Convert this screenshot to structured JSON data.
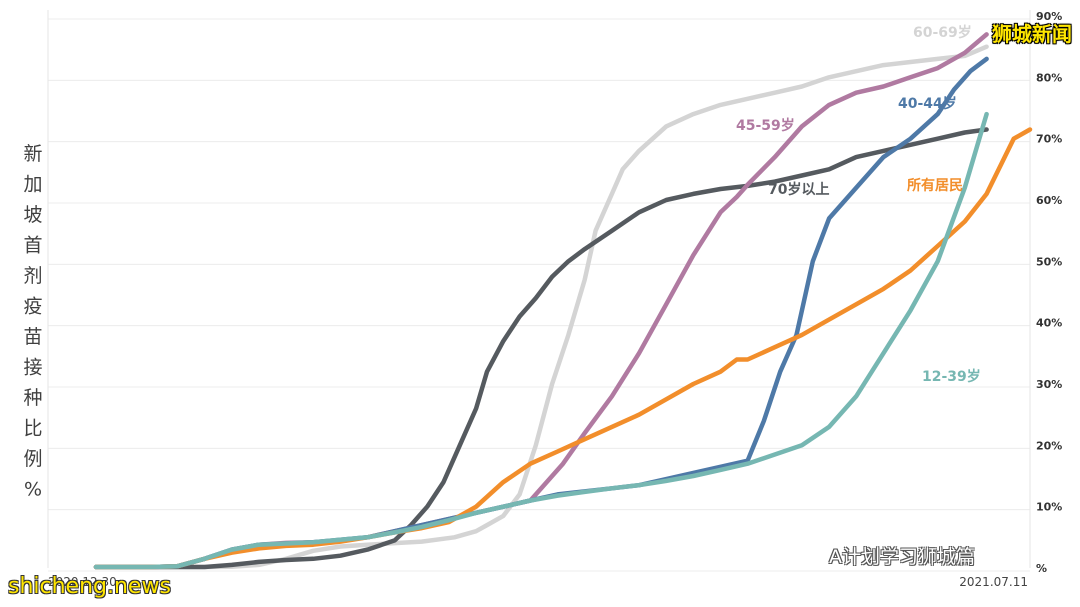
{
  "chart_data": {
    "type": "line",
    "ylabel": "新加坡首剂疫苗接种比例%",
    "ylim": [
      0,
      90
    ],
    "yticks": [
      "%",
      "10%",
      "20%",
      "30%",
      "40%",
      "50%",
      "60%",
      "70%",
      "80%",
      "90%"
    ],
    "xlim": [
      "2020.12.30",
      "2021.07.11"
    ],
    "x_tick_labels": [
      "2020.12.30",
      "2021.07.11"
    ],
    "grid": "horizontal",
    "series": [
      {
        "name": "60-69岁",
        "color": "#d4d4d4",
        "points": [
          [
            0,
            0
          ],
          [
            20,
            0
          ],
          [
            25,
            0.2
          ],
          [
            30,
            0.5
          ],
          [
            35,
            1.5
          ],
          [
            40,
            2.8
          ],
          [
            45,
            3.5
          ],
          [
            50,
            3.8
          ],
          [
            60,
            4.3
          ],
          [
            66,
            5
          ],
          [
            70,
            6
          ],
          [
            72,
            7
          ],
          [
            75,
            8.5
          ],
          [
            78,
            12
          ],
          [
            81,
            20
          ],
          [
            84,
            30
          ],
          [
            87,
            38
          ],
          [
            90,
            47
          ],
          [
            92,
            55
          ],
          [
            95,
            61
          ],
          [
            97,
            65
          ],
          [
            100,
            68
          ],
          [
            105,
            72
          ],
          [
            110,
            74
          ],
          [
            115,
            75.5
          ],
          [
            120,
            76.5
          ],
          [
            125,
            77.5
          ],
          [
            130,
            78.5
          ],
          [
            135,
            80
          ],
          [
            140,
            81
          ],
          [
            145,
            82
          ],
          [
            150,
            82.5
          ],
          [
            155,
            83
          ],
          [
            160,
            83.5
          ],
          [
            164,
            85
          ]
        ]
      },
      {
        "name": "70岁以上",
        "color": "#555a5f",
        "points": [
          [
            0,
            0
          ],
          [
            10,
            0
          ],
          [
            15,
            -0.3
          ],
          [
            20,
            0
          ],
          [
            25,
            0.5
          ],
          [
            30,
            1
          ],
          [
            35,
            1.3
          ],
          [
            40,
            1.5
          ],
          [
            45,
            2
          ],
          [
            50,
            3
          ],
          [
            55,
            4.5
          ],
          [
            58,
            7
          ],
          [
            61,
            10
          ],
          [
            64,
            14
          ],
          [
            67,
            20
          ],
          [
            70,
            26
          ],
          [
            72,
            32
          ],
          [
            75,
            37
          ],
          [
            78,
            41
          ],
          [
            81,
            44
          ],
          [
            84,
            47.5
          ],
          [
            87,
            50
          ],
          [
            90,
            52
          ],
          [
            95,
            55
          ],
          [
            100,
            58
          ],
          [
            105,
            60
          ],
          [
            110,
            61
          ],
          [
            115,
            61.8
          ],
          [
            120,
            62.3
          ],
          [
            125,
            63
          ],
          [
            130,
            64
          ],
          [
            135,
            65
          ],
          [
            140,
            67
          ],
          [
            145,
            68
          ],
          [
            150,
            69
          ],
          [
            155,
            70
          ],
          [
            160,
            71
          ],
          [
            164,
            71.5
          ]
        ]
      },
      {
        "name": "45-59岁",
        "color": "#b07aa1",
        "points": [
          [
            0,
            0
          ],
          [
            10,
            0
          ],
          [
            15,
            0.3
          ],
          [
            20,
            1.5
          ],
          [
            25,
            3
          ],
          [
            30,
            3.8
          ],
          [
            35,
            4.1
          ],
          [
            40,
            4.2
          ],
          [
            45,
            4.5
          ],
          [
            50,
            5
          ],
          [
            55,
            6
          ],
          [
            60,
            7
          ],
          [
            65,
            8
          ],
          [
            70,
            9
          ],
          [
            75,
            10
          ],
          [
            80,
            11
          ],
          [
            83,
            14
          ],
          [
            86,
            17
          ],
          [
            90,
            22
          ],
          [
            95,
            28
          ],
          [
            100,
            35
          ],
          [
            105,
            43
          ],
          [
            110,
            51
          ],
          [
            115,
            58
          ],
          [
            118,
            60.5
          ],
          [
            120,
            62.5
          ],
          [
            125,
            67
          ],
          [
            130,
            72
          ],
          [
            135,
            75.5
          ],
          [
            140,
            77.5
          ],
          [
            145,
            78.5
          ],
          [
            150,
            80
          ],
          [
            155,
            81.5
          ],
          [
            160,
            84
          ],
          [
            164,
            87
          ]
        ]
      },
      {
        "name": "40-44岁",
        "color": "#4e79a7",
        "points": [
          [
            0,
            0
          ],
          [
            10,
            0
          ],
          [
            15,
            0.3
          ],
          [
            20,
            1.5
          ],
          [
            25,
            3
          ],
          [
            30,
            3.8
          ],
          [
            35,
            4
          ],
          [
            40,
            4.2
          ],
          [
            45,
            4.6
          ],
          [
            50,
            5
          ],
          [
            55,
            6
          ],
          [
            60,
            7
          ],
          [
            65,
            8
          ],
          [
            70,
            9
          ],
          [
            75,
            10
          ],
          [
            80,
            11
          ],
          [
            85,
            12
          ],
          [
            90,
            12.5
          ],
          [
            95,
            13
          ],
          [
            100,
            13.5
          ],
          [
            105,
            14.5
          ],
          [
            110,
            15.5
          ],
          [
            115,
            16.5
          ],
          [
            120,
            17.5
          ],
          [
            123,
            24
          ],
          [
            126,
            32
          ],
          [
            129,
            38
          ],
          [
            132,
            50
          ],
          [
            135,
            57
          ],
          [
            140,
            62
          ],
          [
            145,
            67
          ],
          [
            150,
            70
          ],
          [
            155,
            74
          ],
          [
            158,
            78
          ],
          [
            161,
            81
          ],
          [
            164,
            83
          ]
        ]
      },
      {
        "name": "所有居民",
        "color": "#f28e2b",
        "points": [
          [
            0,
            0
          ],
          [
            10,
            0
          ],
          [
            15,
            0.3
          ],
          [
            20,
            1.5
          ],
          [
            25,
            2.5
          ],
          [
            30,
            3.2
          ],
          [
            35,
            3.6
          ],
          [
            40,
            3.8
          ],
          [
            45,
            4.3
          ],
          [
            50,
            5
          ],
          [
            55,
            5.8
          ],
          [
            60,
            6.5
          ],
          [
            65,
            7.5
          ],
          [
            70,
            10
          ],
          [
            75,
            14
          ],
          [
            80,
            17
          ],
          [
            85,
            19
          ],
          [
            90,
            21
          ],
          [
            95,
            23
          ],
          [
            100,
            25
          ],
          [
            105,
            27.5
          ],
          [
            110,
            30
          ],
          [
            115,
            32
          ],
          [
            118,
            34
          ],
          [
            120,
            34
          ],
          [
            125,
            36
          ],
          [
            130,
            38
          ],
          [
            135,
            40.5
          ],
          [
            140,
            43
          ],
          [
            145,
            45.5
          ],
          [
            150,
            48.5
          ],
          [
            155,
            52.5
          ],
          [
            160,
            56.5
          ],
          [
            164,
            61
          ],
          [
            169,
            70
          ],
          [
            172,
            71.5
          ]
        ]
      },
      {
        "name": "12-39岁",
        "color": "#76b7b2",
        "points": [
          [
            0,
            0
          ],
          [
            10,
            0
          ],
          [
            15,
            0.3
          ],
          [
            20,
            1.5
          ],
          [
            25,
            3
          ],
          [
            30,
            3.8
          ],
          [
            35,
            4
          ],
          [
            40,
            4.2
          ],
          [
            45,
            4.6
          ],
          [
            50,
            5
          ],
          [
            55,
            5.8
          ],
          [
            60,
            6.7
          ],
          [
            65,
            7.8
          ],
          [
            70,
            9
          ],
          [
            75,
            10
          ],
          [
            80,
            11
          ],
          [
            85,
            11.8
          ],
          [
            90,
            12.4
          ],
          [
            95,
            13
          ],
          [
            100,
            13.5
          ],
          [
            105,
            14.2
          ],
          [
            110,
            15
          ],
          [
            115,
            16
          ],
          [
            120,
            17
          ],
          [
            125,
            18.5
          ],
          [
            130,
            20
          ],
          [
            135,
            23
          ],
          [
            140,
            28
          ],
          [
            145,
            35
          ],
          [
            150,
            42
          ],
          [
            155,
            50
          ],
          [
            160,
            62
          ],
          [
            164,
            74
          ]
        ]
      }
    ],
    "series_labels": [
      {
        "text": "60-69岁",
        "color": "#d4d4d4"
      },
      {
        "text": "70岁以上",
        "color": "#555a5f"
      },
      {
        "text": "45-59岁",
        "color": "#b07aa1"
      },
      {
        "text": "40-44岁",
        "color": "#4e79a7"
      },
      {
        "text": "所有居民",
        "color": "#f28e2b"
      },
      {
        "text": "12-39岁",
        "color": "#76b7b2"
      }
    ]
  },
  "watermarks": {
    "top_right": "狮城新闻",
    "bottom_left": "shicheng.news",
    "wechat": "A计划学习狮城篇"
  }
}
